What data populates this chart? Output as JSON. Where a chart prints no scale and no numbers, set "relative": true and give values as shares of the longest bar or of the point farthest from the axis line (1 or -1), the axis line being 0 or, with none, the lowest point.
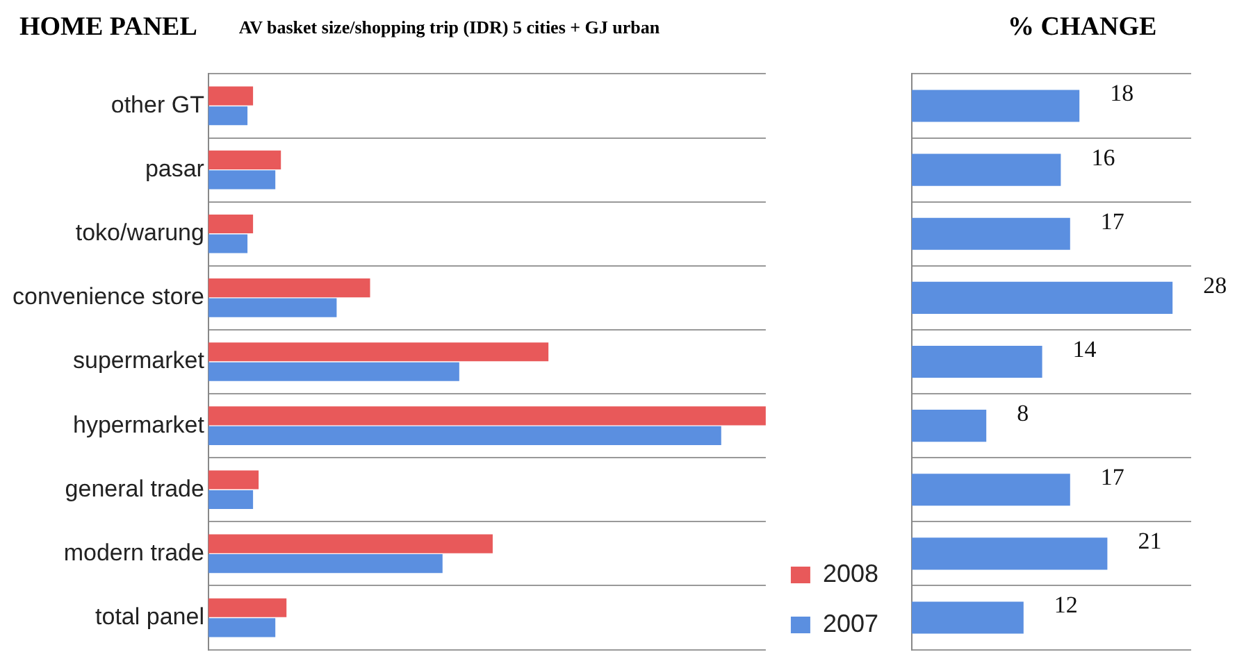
{
  "chart_data": [
    {
      "type": "bar",
      "orientation": "horizontal",
      "relative": true,
      "title": "AV basket size/shopping trip (IDR) 5 cities + GJ urban",
      "annotations": [
        "HOME PANEL"
      ],
      "categories": [
        "other GT",
        "pasar",
        "toko/warung",
        "convenience store",
        "supermarket",
        "hypermarket",
        "general trade",
        "modern trade",
        "total panel"
      ],
      "series": [
        {
          "name": "2008",
          "color": "#e8595a",
          "values": [
            0.08,
            0.13,
            0.08,
            0.29,
            0.61,
            1,
            0.09,
            0.51,
            0.14
          ]
        },
        {
          "name": "2007",
          "color": "#5b8fe0",
          "values": [
            0.07,
            0.12,
            0.07,
            0.23,
            0.45,
            0.92,
            0.08,
            0.42,
            0.12
          ]
        }
      ],
      "grid": "y",
      "legend": "bottom right"
    },
    {
      "type": "bar",
      "orientation": "horizontal",
      "title": "% CHANGE",
      "categories": [
        null,
        null,
        null,
        null,
        null,
        null,
        null,
        null,
        null
      ],
      "values": [
        18,
        16,
        17,
        28,
        14,
        8,
        17,
        21,
        12
      ],
      "color": "#5b8fe0",
      "data_labels": true,
      "grid": "y"
    }
  ]
}
